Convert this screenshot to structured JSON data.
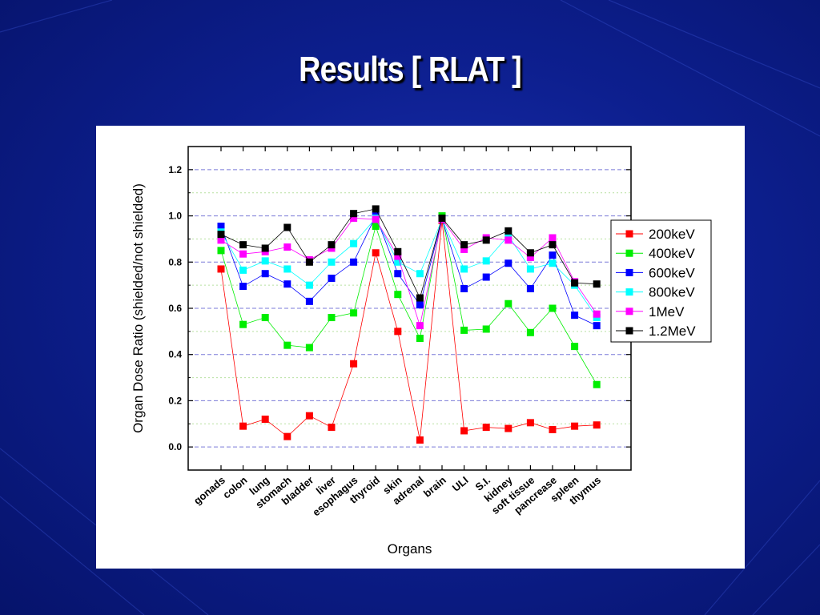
{
  "slide": {
    "title": "Results [  RLAT  ]"
  },
  "chart_data": {
    "type": "line",
    "xlabel": "Organs",
    "ylabel": "Organ Dose Ratio (shielded/not shielded)",
    "ylim": [
      -0.1,
      1.3
    ],
    "yticks": [
      "0.0",
      "0.2",
      "0.4",
      "0.6",
      "0.8",
      "1.0",
      "1.2"
    ],
    "grid": true,
    "legend_position": "right",
    "categories": [
      "gonads",
      "colon",
      "lung",
      "stomach",
      "bladder",
      "liver",
      "esophagus",
      "thyroid",
      "skin",
      "adrenal",
      "brain",
      "ULI",
      "S.I.",
      "kidney",
      "soft tissue",
      "pancrease",
      "spleen",
      "thymus"
    ],
    "series": [
      {
        "name": "200keV",
        "color": "#ff0000",
        "values": [
          0.77,
          0.09,
          0.12,
          0.045,
          0.135,
          0.085,
          0.36,
          0.84,
          0.5,
          0.03,
          0.98,
          0.07,
          0.085,
          0.08,
          0.105,
          0.075,
          0.09,
          0.095
        ]
      },
      {
        "name": "400keV",
        "color": "#00ee00",
        "values": [
          0.85,
          0.53,
          0.56,
          0.44,
          0.43,
          0.56,
          0.58,
          0.955,
          0.66,
          0.47,
          1.0,
          0.505,
          0.51,
          0.62,
          0.495,
          0.6,
          0.435,
          0.27
        ]
      },
      {
        "name": "600keV",
        "color": "#0000ff",
        "values": [
          0.955,
          0.695,
          0.75,
          0.705,
          0.63,
          0.73,
          0.8,
          1.0,
          0.75,
          0.615,
          0.985,
          0.685,
          0.735,
          0.795,
          0.685,
          0.83,
          0.57,
          0.525
        ]
      },
      {
        "name": "800keV",
        "color": "#00ffff",
        "values": [
          0.93,
          0.765,
          0.805,
          0.77,
          0.7,
          0.8,
          0.88,
          0.99,
          0.8,
          0.75,
          0.985,
          0.77,
          0.805,
          0.915,
          0.77,
          0.795,
          0.7,
          0.56
        ]
      },
      {
        "name": "1MeV",
        "color": "#ff00ff",
        "values": [
          0.895,
          0.835,
          0.845,
          0.865,
          0.81,
          0.86,
          0.99,
          0.985,
          0.825,
          0.525,
          0.985,
          0.855,
          0.905,
          0.895,
          0.82,
          0.905,
          0.715,
          0.575
        ]
      },
      {
        "name": "1.2MeV",
        "color": "#000000",
        "values": [
          0.92,
          0.875,
          0.86,
          0.95,
          0.8,
          0.875,
          1.01,
          1.03,
          0.845,
          0.645,
          0.99,
          0.875,
          0.895,
          0.935,
          0.84,
          0.875,
          0.71,
          0.705
        ]
      }
    ]
  }
}
